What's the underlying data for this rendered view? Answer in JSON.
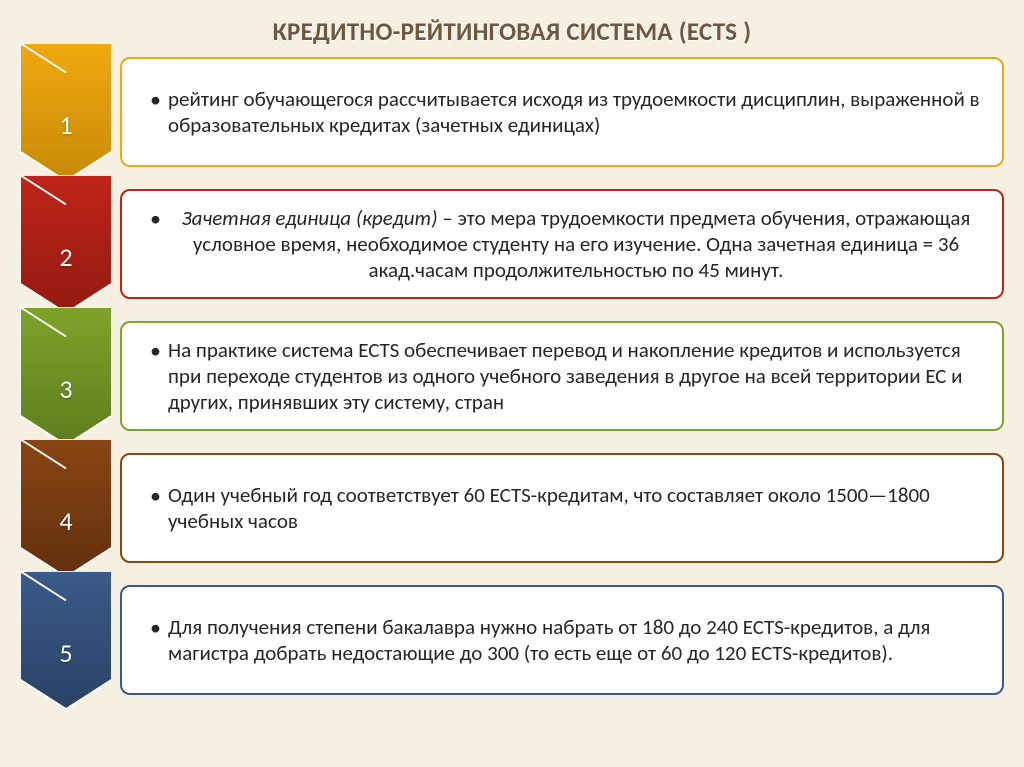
{
  "title": "КРЕДИТНО-РЕЙТИНГОВАЯ СИСТЕМА (ECTS )",
  "layout": {
    "type": "infographic",
    "structure": "vertical-chevron-list",
    "background_color": "#f5f0e1",
    "title_color": "#6b5744",
    "title_fontsize": 25,
    "body_fontsize": 21,
    "chevron_width": 92,
    "row_gap": 22,
    "content_background": "#ffffff",
    "content_border_radius": 10
  },
  "items": [
    {
      "num": "1",
      "color": "#f0a80f",
      "color_dark": "#c78a08",
      "text": "рейтинг обучающегося рассчитывается исходя из трудоемкости дисциплин, выраженной в образовательных кредитах (зачетных единицах)",
      "italic_prefix": ""
    },
    {
      "num": "2",
      "color": "#c02418",
      "color_dark": "#931a11",
      "text": " – это мера трудоемкости предмета обучения, отражающая условное время, необходимое студенту на его изучение. Одна зачетная единица = 36 акад.часам продолжительностью по 45 минут.",
      "italic_prefix": "Зачетная единица (кредит)"
    },
    {
      "num": "3",
      "color": "#7ea329",
      "color_dark": "#5e7d1e",
      "text": "На практике система ECTS обеспечивает перевод и накопление кредитов и используется при переходе студентов из одного учебного заведения в другое на всей территории ЕС и других, принявших эту систему, стран",
      "italic_prefix": ""
    },
    {
      "num": "4",
      "color": "#8a4513",
      "color_dark": "#61300d",
      "text": "Один учебный год соответствует 60 ECTS-кредитам, что составляет около 1500—1800 учебных часов",
      "italic_prefix": ""
    },
    {
      "num": "5",
      "color": "#3a5a8a",
      "color_dark": "#2a4266",
      "text": "Для получения степени бакалавра нужно набрать от 180 до 240 ECTS-кредитов, а для магистра добрать недостающие до 300 (то есть еще от 60 до 120 ECTS-кредитов).",
      "italic_prefix": ""
    }
  ]
}
